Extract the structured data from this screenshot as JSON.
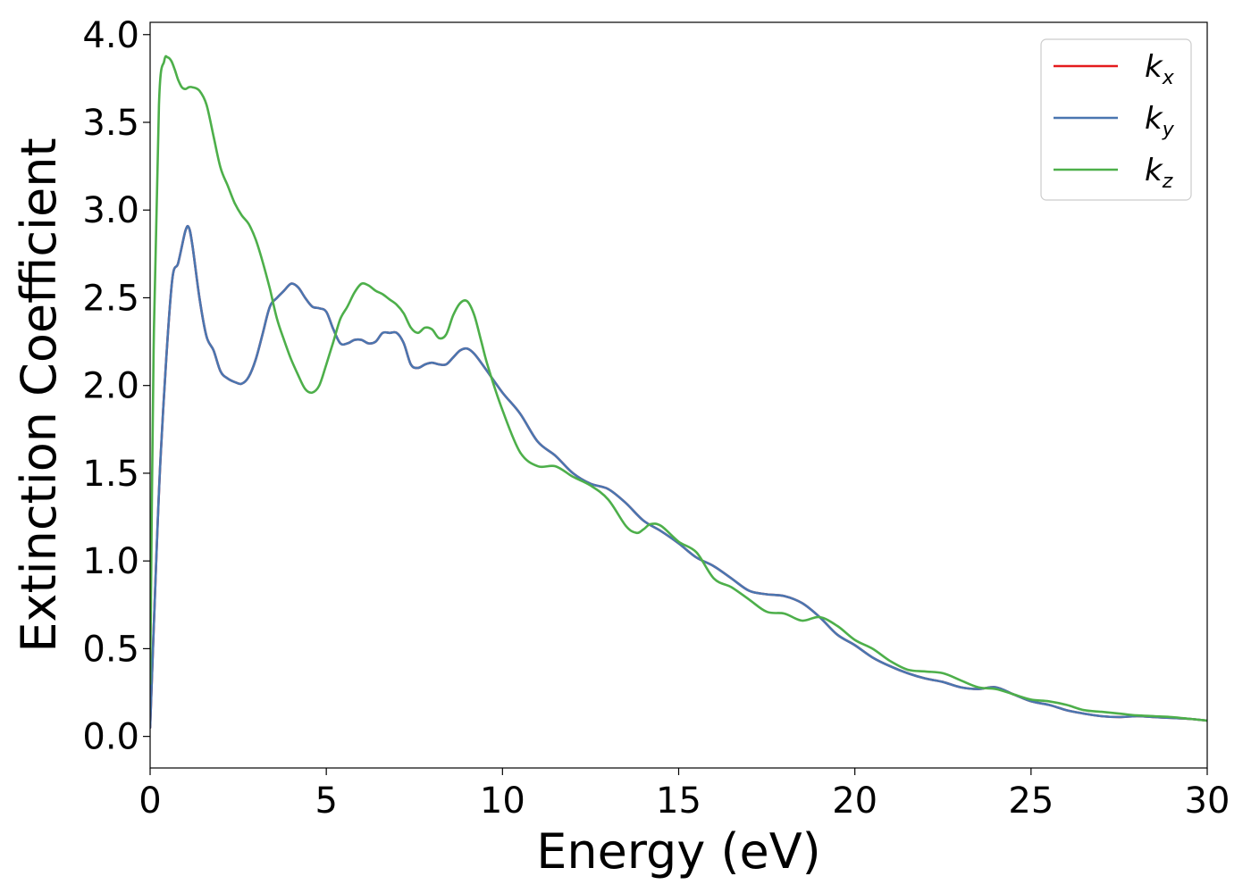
{
  "chart_data": {
    "type": "line",
    "xlabel": "Energy (eV)",
    "ylabel": "Extinction Coefficient",
    "xlim": [
      0,
      30
    ],
    "ylim": [
      -0.18,
      4.07
    ],
    "xticks": [
      0,
      5,
      10,
      15,
      20,
      25,
      30
    ],
    "xtick_labels": [
      "0",
      "5",
      "10",
      "15",
      "20",
      "25",
      "30"
    ],
    "yticks": [
      0.0,
      0.5,
      1.0,
      1.5,
      2.0,
      2.5,
      3.0,
      3.5,
      4.0
    ],
    "ytick_labels": [
      "0.0",
      "0.5",
      "1.0",
      "1.5",
      "2.0",
      "2.5",
      "3.0",
      "3.5",
      "4.0"
    ],
    "grid": false,
    "legend_position": "top-right",
    "series": [
      {
        "name": "k",
        "subscript": "x",
        "color": "#e41a1c",
        "x": [
          0,
          0.1,
          0.3,
          0.6,
          0.8,
          1.0,
          1.1,
          1.2,
          1.4,
          1.6,
          1.8,
          2.0,
          2.2,
          2.4,
          2.6,
          2.8,
          3.0,
          3.2,
          3.4,
          3.6,
          3.8,
          4.0,
          4.2,
          4.4,
          4.6,
          4.8,
          5.0,
          5.2,
          5.4,
          5.6,
          5.8,
          6.0,
          6.2,
          6.4,
          6.6,
          6.8,
          7.0,
          7.2,
          7.4,
          7.6,
          7.8,
          8.0,
          8.2,
          8.4,
          8.6,
          8.8,
          9.0,
          9.2,
          9.5,
          10.0,
          10.5,
          11.0,
          11.5,
          12.0,
          12.5,
          13.0,
          13.5,
          14.0,
          14.5,
          15.0,
          15.5,
          16.0,
          16.5,
          17.0,
          17.5,
          18.0,
          18.5,
          19.0,
          19.5,
          20.0,
          20.5,
          21.0,
          21.5,
          22.0,
          22.5,
          23.0,
          23.5,
          24.0,
          24.5,
          25.0,
          25.5,
          26.0,
          26.5,
          27.0,
          27.5,
          28.0,
          28.5,
          29.0,
          29.5,
          30.0
        ],
        "values": [
          0.05,
          0.6,
          1.6,
          2.55,
          2.7,
          2.88,
          2.9,
          2.8,
          2.5,
          2.28,
          2.2,
          2.08,
          2.04,
          2.02,
          2.01,
          2.05,
          2.15,
          2.3,
          2.45,
          2.5,
          2.54,
          2.58,
          2.56,
          2.5,
          2.45,
          2.44,
          2.42,
          2.32,
          2.24,
          2.24,
          2.26,
          2.26,
          2.24,
          2.25,
          2.3,
          2.3,
          2.3,
          2.24,
          2.12,
          2.1,
          2.12,
          2.13,
          2.12,
          2.12,
          2.16,
          2.2,
          2.21,
          2.18,
          2.1,
          1.96,
          1.84,
          1.68,
          1.6,
          1.5,
          1.44,
          1.41,
          1.33,
          1.23,
          1.17,
          1.1,
          1.02,
          0.97,
          0.9,
          0.83,
          0.81,
          0.8,
          0.76,
          0.68,
          0.58,
          0.52,
          0.45,
          0.4,
          0.36,
          0.33,
          0.31,
          0.28,
          0.27,
          0.28,
          0.24,
          0.2,
          0.18,
          0.15,
          0.13,
          0.115,
          0.11,
          0.115,
          0.11,
          0.105,
          0.1,
          0.09
        ]
      },
      {
        "name": "k",
        "subscript": "y",
        "color": "#4a76b0",
        "x": [
          0,
          0.1,
          0.3,
          0.6,
          0.8,
          1.0,
          1.1,
          1.2,
          1.4,
          1.6,
          1.8,
          2.0,
          2.2,
          2.4,
          2.6,
          2.8,
          3.0,
          3.2,
          3.4,
          3.6,
          3.8,
          4.0,
          4.2,
          4.4,
          4.6,
          4.8,
          5.0,
          5.2,
          5.4,
          5.6,
          5.8,
          6.0,
          6.2,
          6.4,
          6.6,
          6.8,
          7.0,
          7.2,
          7.4,
          7.6,
          7.8,
          8.0,
          8.2,
          8.4,
          8.6,
          8.8,
          9.0,
          9.2,
          9.5,
          10.0,
          10.5,
          11.0,
          11.5,
          12.0,
          12.5,
          13.0,
          13.5,
          14.0,
          14.5,
          15.0,
          15.5,
          16.0,
          16.5,
          17.0,
          17.5,
          18.0,
          18.5,
          19.0,
          19.5,
          20.0,
          20.5,
          21.0,
          21.5,
          22.0,
          22.5,
          23.0,
          23.5,
          24.0,
          24.5,
          25.0,
          25.5,
          26.0,
          26.5,
          27.0,
          27.5,
          28.0,
          28.5,
          29.0,
          29.5,
          30.0
        ],
        "values": [
          0.05,
          0.6,
          1.6,
          2.55,
          2.7,
          2.88,
          2.9,
          2.8,
          2.5,
          2.28,
          2.2,
          2.08,
          2.04,
          2.02,
          2.01,
          2.05,
          2.15,
          2.3,
          2.45,
          2.5,
          2.54,
          2.58,
          2.56,
          2.5,
          2.45,
          2.44,
          2.42,
          2.32,
          2.24,
          2.24,
          2.26,
          2.26,
          2.24,
          2.25,
          2.3,
          2.3,
          2.3,
          2.24,
          2.12,
          2.1,
          2.12,
          2.13,
          2.12,
          2.12,
          2.16,
          2.2,
          2.21,
          2.18,
          2.1,
          1.96,
          1.84,
          1.68,
          1.6,
          1.5,
          1.44,
          1.41,
          1.33,
          1.23,
          1.17,
          1.1,
          1.02,
          0.97,
          0.9,
          0.83,
          0.81,
          0.8,
          0.76,
          0.68,
          0.58,
          0.52,
          0.45,
          0.4,
          0.36,
          0.33,
          0.31,
          0.28,
          0.27,
          0.28,
          0.24,
          0.2,
          0.18,
          0.15,
          0.13,
          0.115,
          0.11,
          0.115,
          0.11,
          0.105,
          0.1,
          0.09
        ]
      },
      {
        "name": "k",
        "subscript": "z",
        "color": "#4daf4a",
        "x": [
          0,
          0.1,
          0.25,
          0.4,
          0.5,
          0.6,
          0.7,
          0.8,
          0.9,
          1.0,
          1.1,
          1.2,
          1.4,
          1.6,
          1.8,
          2.0,
          2.2,
          2.4,
          2.6,
          2.8,
          3.0,
          3.2,
          3.4,
          3.6,
          3.8,
          4.0,
          4.2,
          4.4,
          4.6,
          4.8,
          5.0,
          5.2,
          5.4,
          5.6,
          5.8,
          6.0,
          6.2,
          6.4,
          6.6,
          6.8,
          7.0,
          7.2,
          7.4,
          7.6,
          7.8,
          8.0,
          8.2,
          8.4,
          8.6,
          8.8,
          9.0,
          9.2,
          9.4,
          9.6,
          10.0,
          10.5,
          11.0,
          11.5,
          12.0,
          12.5,
          13.0,
          13.5,
          13.8,
          14.0,
          14.2,
          14.5,
          15.0,
          15.5,
          16.0,
          16.5,
          17.0,
          17.5,
          18.0,
          18.5,
          19.0,
          19.5,
          20.0,
          20.5,
          21.0,
          21.5,
          22.0,
          22.5,
          23.0,
          23.5,
          24.0,
          24.5,
          25.0,
          25.5,
          26.0,
          26.5,
          27.0,
          27.5,
          28.0,
          28.5,
          29.0,
          29.5,
          30.0
        ],
        "values": [
          0.3,
          2.2,
          3.6,
          3.85,
          3.87,
          3.85,
          3.8,
          3.74,
          3.7,
          3.69,
          3.7,
          3.7,
          3.68,
          3.6,
          3.42,
          3.24,
          3.14,
          3.04,
          2.97,
          2.92,
          2.83,
          2.7,
          2.55,
          2.38,
          2.26,
          2.15,
          2.06,
          1.98,
          1.96,
          2.0,
          2.12,
          2.25,
          2.38,
          2.45,
          2.53,
          2.58,
          2.57,
          2.54,
          2.52,
          2.49,
          2.46,
          2.41,
          2.33,
          2.3,
          2.33,
          2.32,
          2.27,
          2.29,
          2.4,
          2.47,
          2.48,
          2.4,
          2.25,
          2.1,
          1.86,
          1.62,
          1.54,
          1.54,
          1.48,
          1.43,
          1.35,
          1.2,
          1.16,
          1.18,
          1.21,
          1.2,
          1.11,
          1.05,
          0.9,
          0.85,
          0.78,
          0.71,
          0.7,
          0.66,
          0.68,
          0.63,
          0.55,
          0.5,
          0.43,
          0.38,
          0.37,
          0.36,
          0.32,
          0.28,
          0.27,
          0.24,
          0.21,
          0.2,
          0.18,
          0.15,
          0.14,
          0.13,
          0.12,
          0.115,
          0.11,
          0.1,
          0.09
        ]
      }
    ]
  }
}
